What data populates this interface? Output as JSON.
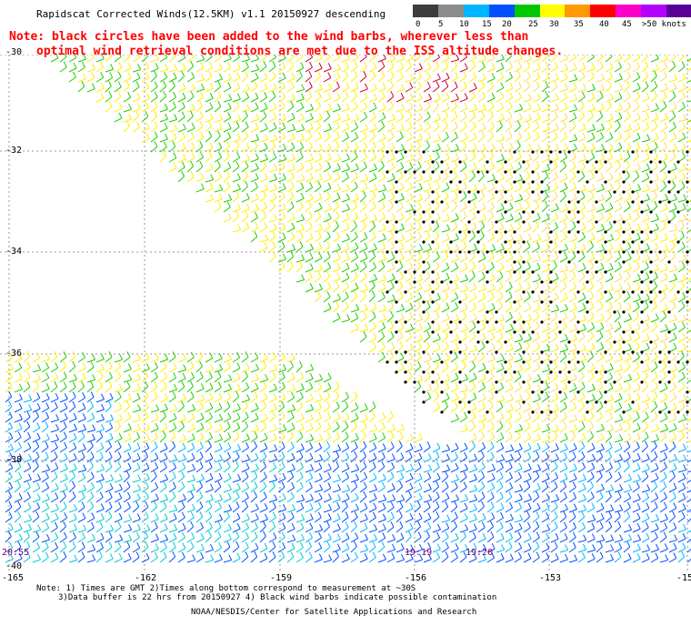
{
  "header": {
    "title": "Rapidscat Corrected Winds(12.5KM) v1.1 20150927 descending",
    "note_line1": "Note: black circles have been added to the wind barbs, wherever less than",
    "note_line2": "optimal wind retrieval conditions are met due to the ISS altitude changes."
  },
  "legend": {
    "labels": [
      "0",
      "5",
      "10",
      "15",
      "20",
      "25",
      "30",
      "35",
      "40",
      "45",
      ">50 knots"
    ],
    "colors": [
      "#3c3c3c",
      "#8c8c8c",
      "#00b4ff",
      "#0050ff",
      "#00c800",
      "#ffff00",
      "#ff9900",
      "#ff0000",
      "#ff00c8",
      "#b400ff",
      "#5a0096"
    ]
  },
  "map": {
    "lat_labels": [
      "-30",
      "-32",
      "-34",
      "-36",
      "-38",
      "-40"
    ],
    "lon_labels": [
      "-165",
      "-162",
      "-159",
      "-156",
      "-153",
      "-15"
    ],
    "time_labels": [
      "19:19",
      "19:20",
      "20:55"
    ]
  },
  "footer": {
    "line1": "Note: 1) Times are GMT 2)Times along bottom correspond to measurement at ~30S",
    "line2": "3)Data buffer is 22 hrs from 20150927 4) Black wind barbs indicate possible contamination",
    "line3": "NOAA/NESDIS/Center for Satellite Applications and Research"
  }
}
